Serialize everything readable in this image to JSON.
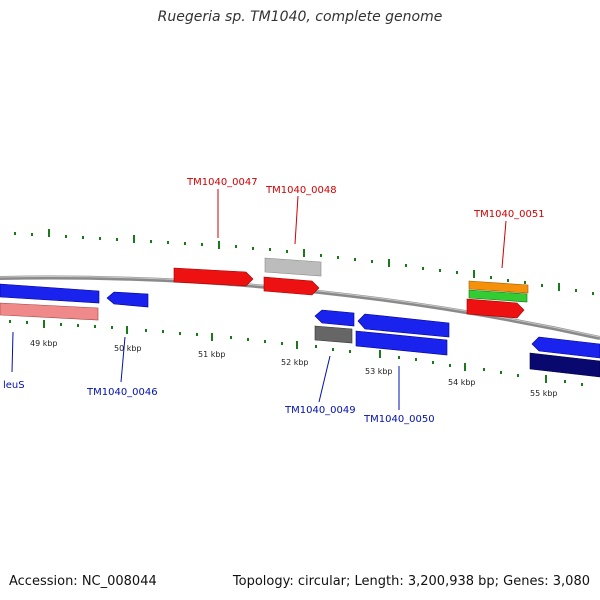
{
  "title": "Ruegeria sp. TM1040, complete genome",
  "footer": {
    "accession": "Accession: NC_008044",
    "summary": "Topology: circular; Length: 3,200,938 bp; Genes: 3,080"
  },
  "colors": {
    "backbone": "#8a8a8a",
    "tick": "#1a7a1a",
    "forward_label": "#d10000",
    "reverse_label": "#0010b0"
  },
  "kbp_labels": [
    "49 kbp",
    "50 kbp",
    "51 kbp",
    "52 kbp",
    "53 kbp",
    "54 kbp",
    "55 kbp"
  ],
  "gene_labels": {
    "tm0047": "TM1040_0047",
    "tm0048": "TM1040_0048",
    "tm0051": "TM1040_0051",
    "leus": "leuS",
    "tm0046": "TM1040_0046",
    "tm0049": "TM1040_0049",
    "tm0050": "TM1040_0050"
  }
}
